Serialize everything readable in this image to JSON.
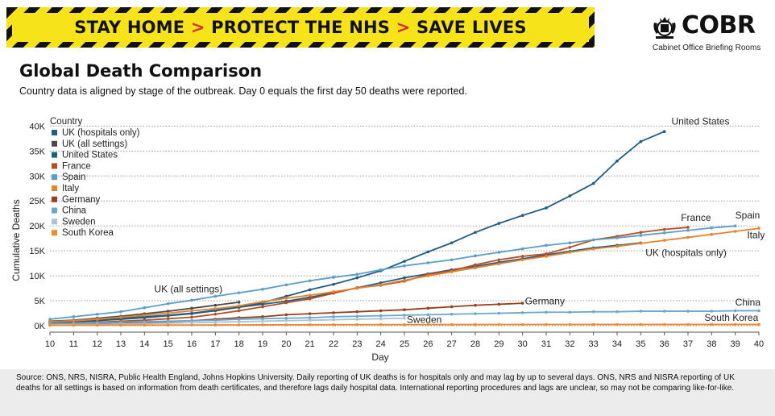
{
  "banner": {
    "parts": [
      "STAY HOME",
      "PROTECT THE NHS",
      "SAVE LIVES"
    ],
    "separator": ">",
    "colors": {
      "background": "#f7e31a",
      "stripe": "#111111",
      "arrow": "#d4322c"
    }
  },
  "logo": {
    "name": "COBR",
    "subtitle": "Cabinet Office Briefing Rooms",
    "icon": "royal-crest-icon"
  },
  "header": {
    "title": "Global Death Comparison",
    "subtitle": "Country data is aligned by stage of the outbreak. Day 0 equals the first day 50 deaths were reported."
  },
  "footer": {
    "source": "Source: ONS, NRS, NISRA, Public Health England, Johns Hopkins University. Daily reporting of UK deaths is for hospitals only and may lag by up to several days. ONS, NRS and NISRA reporting of UK deaths for all settings is based on information from death certificates, and therefore lags daily hospital data. International reporting procedures and lags are unclear, so may not be comparing like-for-like."
  },
  "chart_data": {
    "type": "line",
    "xlabel": "Day",
    "ylabel": "Cumulative Deaths",
    "xlim": [
      10,
      40
    ],
    "ylim": [
      0,
      42000
    ],
    "x_ticks": [
      10,
      11,
      12,
      13,
      14,
      15,
      16,
      17,
      18,
      19,
      20,
      21,
      22,
      23,
      24,
      25,
      26,
      27,
      28,
      29,
      30,
      31,
      32,
      33,
      34,
      35,
      36,
      37,
      38,
      39,
      40
    ],
    "y_ticks": [
      0,
      5000,
      10000,
      15000,
      20000,
      25000,
      30000,
      35000,
      40000
    ],
    "y_tick_labels": [
      "0K",
      "5K",
      "10K",
      "15K",
      "20K",
      "25K",
      "30K",
      "35K",
      "40K"
    ],
    "grid": "horizontal dotted",
    "legend_title": "Country",
    "legend_position": "top-left",
    "series": [
      {
        "name": "UK (hospitals only)",
        "color": "#1d5f86",
        "end_label": "UK (hospitals only)",
        "x": [
          10,
          11,
          12,
          13,
          14,
          15,
          16,
          17,
          18,
          19,
          20,
          21,
          22,
          23,
          24,
          25,
          26,
          27,
          28,
          29,
          30,
          31,
          32,
          33,
          34,
          35
        ],
        "y": [
          800,
          900,
          1200,
          1500,
          1800,
          2100,
          2500,
          3100,
          3700,
          4300,
          4900,
          5700,
          6600,
          7600,
          8600,
          9600,
          10400,
          11200,
          11900,
          12700,
          13400,
          14200,
          14900,
          15600,
          16100,
          16600
        ]
      },
      {
        "name": "UK (all settings)",
        "color": "#4a4a4a",
        "end_label": "UK (all settings)",
        "x": [
          10,
          11,
          12,
          13,
          14,
          15,
          16,
          17,
          18
        ],
        "y": [
          900,
          1100,
          1500,
          1900,
          2400,
          2900,
          3500,
          4100,
          4700
        ]
      },
      {
        "name": "United States",
        "color": "#1e5d84",
        "end_label": "United States",
        "x": [
          10,
          11,
          12,
          13,
          14,
          15,
          16,
          17,
          18,
          19,
          20,
          21,
          22,
          23,
          24,
          25,
          26,
          27,
          28,
          29,
          30,
          31,
          32,
          33,
          34,
          35,
          36
        ],
        "y": [
          600,
          800,
          1000,
          1300,
          1600,
          2000,
          2400,
          3000,
          3700,
          4600,
          5900,
          7200,
          8300,
          9600,
          11000,
          12900,
          14800,
          16600,
          18700,
          20500,
          22100,
          23600,
          26000,
          28500,
          33000,
          36900,
          38900
        ]
      },
      {
        "name": "France",
        "color": "#b84d1f",
        "end_label": "France",
        "x": [
          10,
          11,
          12,
          13,
          14,
          15,
          16,
          17,
          18,
          19,
          20,
          21,
          22,
          23,
          24,
          25,
          26,
          27,
          28,
          29,
          30,
          31,
          32,
          33,
          34,
          35,
          36,
          37
        ],
        "y": [
          400,
          500,
          700,
          900,
          1100,
          1400,
          1700,
          2300,
          3000,
          3800,
          4600,
          5400,
          6500,
          7600,
          8100,
          8900,
          10300,
          11000,
          12200,
          13200,
          13900,
          14400,
          15700,
          17200,
          17900,
          18700,
          19300,
          19700
        ]
      },
      {
        "name": "Spain",
        "color": "#5a9ec7",
        "end_label": "Spain",
        "x": [
          10,
          11,
          12,
          13,
          14,
          15,
          16,
          17,
          18,
          19,
          20,
          21,
          22,
          23,
          24,
          25,
          26,
          27,
          28,
          29,
          30,
          31,
          32,
          33,
          34,
          35,
          36,
          37,
          38,
          39
        ],
        "y": [
          1300,
          1800,
          2300,
          2800,
          3600,
          4400,
          5100,
          5900,
          6600,
          7300,
          8200,
          9000,
          9700,
          10300,
          11200,
          12000,
          12600,
          13200,
          14000,
          14700,
          15400,
          16100,
          16600,
          17200,
          17600,
          18100,
          18600,
          19100,
          19600,
          20000
        ]
      },
      {
        "name": "Italy",
        "color": "#e8822a",
        "end_label": "Italy",
        "x": [
          10,
          11,
          12,
          13,
          14,
          15,
          16,
          17,
          18,
          19,
          20,
          21,
          22,
          23,
          24,
          25,
          26,
          27,
          28,
          29,
          30,
          31,
          32,
          33,
          34,
          35,
          36,
          37,
          38,
          39,
          40
        ],
        "y": [
          800,
          1000,
          1300,
          1700,
          2100,
          2500,
          3000,
          3400,
          4000,
          4800,
          5500,
          6100,
          6800,
          7500,
          8200,
          9100,
          10000,
          10800,
          11600,
          12400,
          13200,
          13900,
          14700,
          15400,
          15900,
          16500,
          17100,
          17700,
          18300,
          18900,
          19500
        ]
      },
      {
        "name": "Germany",
        "color": "#9a3e1a",
        "end_label": "Germany",
        "x": [
          10,
          11,
          12,
          13,
          14,
          15,
          16,
          17,
          18,
          19,
          20,
          21,
          22,
          23,
          24,
          25,
          26,
          27,
          28,
          29,
          30
        ],
        "y": [
          300,
          400,
          500,
          600,
          700,
          800,
          1000,
          1300,
          1600,
          1800,
          2200,
          2400,
          2600,
          2800,
          3000,
          3200,
          3500,
          3800,
          4100,
          4300,
          4500
        ]
      },
      {
        "name": "China",
        "color": "#6aa7cd",
        "end_label": "China",
        "x": [
          10,
          11,
          12,
          13,
          14,
          15,
          16,
          17,
          18,
          19,
          20,
          21,
          22,
          23,
          24,
          25,
          26,
          27,
          28,
          29,
          30,
          31,
          32,
          33,
          34,
          35,
          36,
          37,
          38,
          39,
          40
        ],
        "y": [
          400,
          500,
          600,
          700,
          800,
          900,
          1000,
          1100,
          1300,
          1400,
          1500,
          1600,
          1800,
          1900,
          2000,
          2100,
          2200,
          2300,
          2400,
          2500,
          2600,
          2700,
          2700,
          2800,
          2800,
          2900,
          2900,
          2900,
          2900,
          3000,
          3000
        ]
      },
      {
        "name": "Sweden",
        "color": "#a9c4d6",
        "end_label": "Sweden",
        "x": [
          10,
          11,
          12,
          13,
          14,
          15,
          16,
          17,
          18,
          19,
          20,
          21,
          22,
          23,
          24,
          25
        ],
        "y": [
          150,
          200,
          250,
          300,
          400,
          500,
          600,
          700,
          800,
          900,
          1000,
          1100,
          1200,
          1300,
          1400,
          1500
        ]
      },
      {
        "name": "South Korea",
        "color": "#f08a2e",
        "end_label": "South Korea",
        "x": [
          10,
          11,
          12,
          13,
          14,
          15,
          16,
          17,
          18,
          19,
          20,
          21,
          22,
          23,
          24,
          25,
          26,
          27,
          28,
          29,
          30,
          31,
          32,
          33,
          34,
          35,
          36,
          37,
          38,
          39,
          40
        ],
        "y": [
          80,
          90,
          100,
          110,
          120,
          130,
          140,
          150,
          160,
          170,
          180,
          190,
          200,
          200,
          210,
          220,
          220,
          230,
          230,
          240,
          240,
          240,
          240,
          250,
          250,
          250,
          250,
          250,
          250,
          250,
          250
        ]
      }
    ],
    "end_labels": [
      {
        "text": "United States",
        "x": 36.3,
        "y": 40300,
        "anchor": "start"
      },
      {
        "text": "Spain",
        "x": 39,
        "y": 21500,
        "anchor": "start"
      },
      {
        "text": "France",
        "x": 36.7,
        "y": 21000,
        "anchor": "start"
      },
      {
        "text": "Italy",
        "x": 39.5,
        "y": 17500,
        "anchor": "start"
      },
      {
        "text": "UK (hospitals only)",
        "x": 35.2,
        "y": 14000,
        "anchor": "start"
      },
      {
        "text": "UK (all settings)",
        "x": 17.3,
        "y": 6700,
        "anchor": "end"
      },
      {
        "text": "Germany",
        "x": 30.1,
        "y": 4300,
        "anchor": "start"
      },
      {
        "text": "China",
        "x": 39,
        "y": 4000,
        "anchor": "start"
      },
      {
        "text": "Sweden",
        "x": 25.1,
        "y": 600,
        "anchor": "start"
      },
      {
        "text": "South Korea",
        "x": 37.7,
        "y": 1000,
        "anchor": "start"
      }
    ]
  }
}
